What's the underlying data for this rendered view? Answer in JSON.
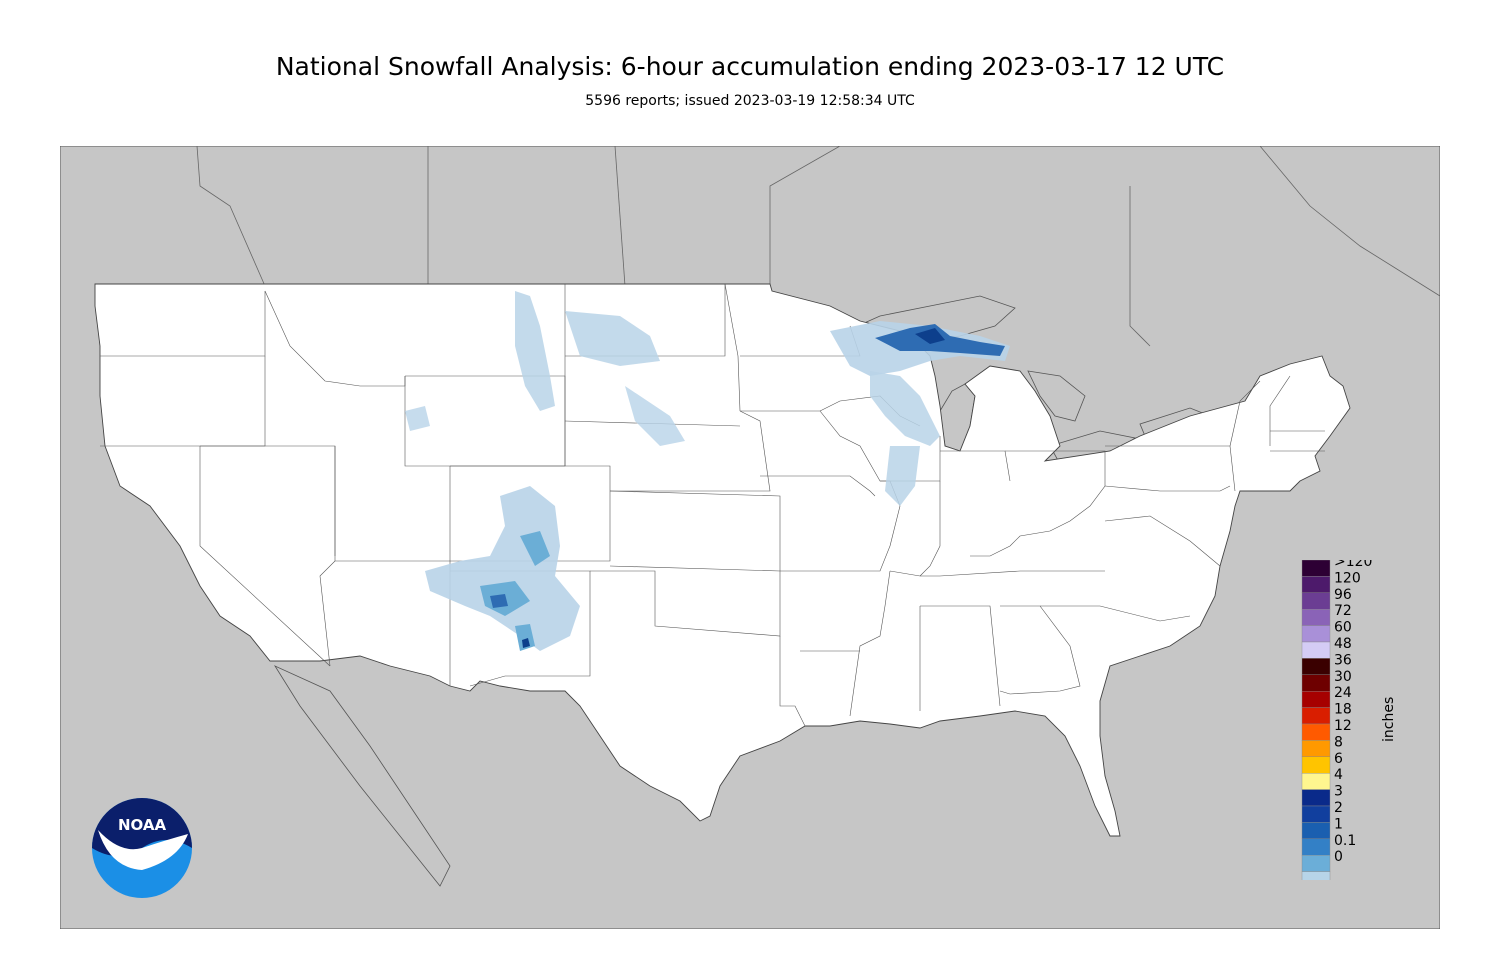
{
  "header": {
    "title": "National Snowfall Analysis: 6-hour accumulation ending 2023-03-17 12 UTC",
    "subtitle": "5596 reports; issued 2023-03-19 12:58:34 UTC"
  },
  "legend": {
    "units": "inches",
    "levels": [
      {
        "label": ">120",
        "color": "#2d0034"
      },
      {
        "label": "120",
        "color": "#4d1a6b"
      },
      {
        "label": "96",
        "color": "#6b3d93"
      },
      {
        "label": "72",
        "color": "#8a63b7"
      },
      {
        "label": "60",
        "color": "#a990d8"
      },
      {
        "label": "48",
        "color": "#d4ccf5"
      },
      {
        "label": "36",
        "color": "#3a0000"
      },
      {
        "label": "30",
        "color": "#6e0000"
      },
      {
        "label": "24",
        "color": "#a60000"
      },
      {
        "label": "18",
        "color": "#d91e00"
      },
      {
        "label": "12",
        "color": "#ff5a00"
      },
      {
        "label": "8",
        "color": "#ff9900"
      },
      {
        "label": "6",
        "color": "#ffc400"
      },
      {
        "label": "4",
        "color": "#fff68f"
      },
      {
        "label": "3",
        "color": "#0a2a8a"
      },
      {
        "label": "2",
        "color": "#113f9e"
      },
      {
        "label": "1",
        "color": "#1a5fb0"
      },
      {
        "label": "0.1",
        "color": "#3380c6"
      },
      {
        "label": "0",
        "color": "#6baed8"
      }
    ],
    "bottom_colors": [
      "#b7d4e8",
      "#e1ecf5",
      "#ffffff"
    ]
  },
  "map": {
    "background_color": "#c6c6c6",
    "land_color": "#ffffff",
    "snow_colors": {
      "trace": "#dbe8f3",
      "light": "#b8d3e8",
      "moderate": "#6baed6",
      "heavy": "#2e6cb3",
      "deep": "#0d3f8c"
    }
  },
  "logo": {
    "text": "NOAA"
  }
}
